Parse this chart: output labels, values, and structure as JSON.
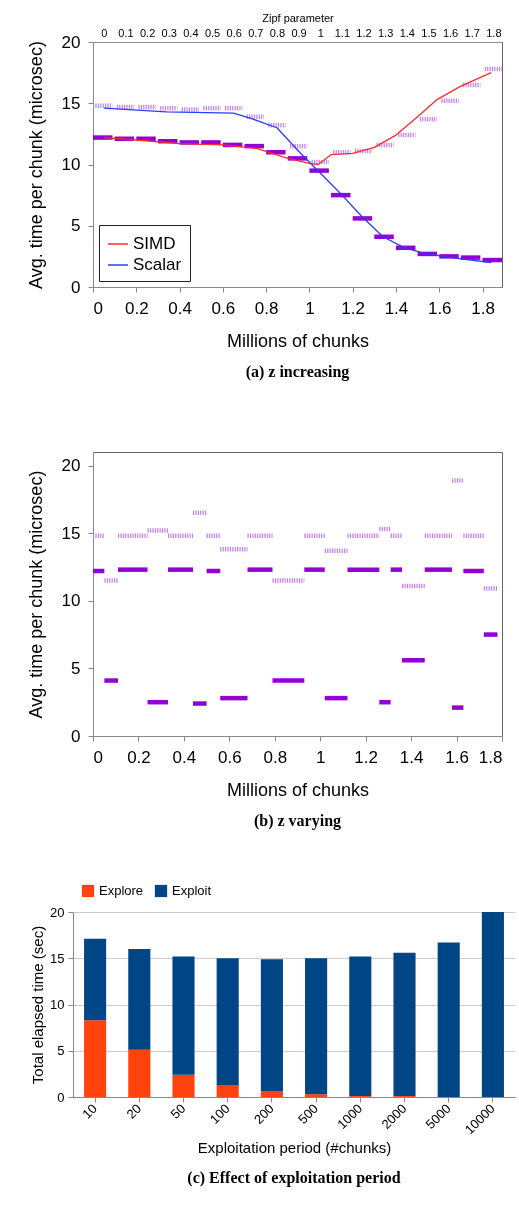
{
  "chart_data": [
    {
      "type": "line",
      "title": "(a) z increasing",
      "xlabel": "Millions of chunks",
      "ylabel": "Avg. time per chunk (microsec)",
      "x2label": "Zipf parameter",
      "xlim": [
        0,
        1.89
      ],
      "xticks": [
        0,
        0.2,
        0.4,
        0.6,
        0.8,
        1,
        1.2,
        1.4,
        1.6,
        1.8
      ],
      "x2lim": [
        -0.05,
        1.84
      ],
      "x2ticks": [
        0,
        0.1,
        0.2,
        0.3,
        0.4,
        0.5,
        0.6,
        0.7,
        0.8,
        0.9,
        1,
        1.1,
        1.2,
        1.3,
        1.4,
        1.5,
        1.6,
        1.7,
        1.8
      ],
      "ylim": [
        0,
        20
      ],
      "yticks": [
        0,
        5,
        10,
        15,
        20
      ],
      "grid": false,
      "legend": "bottom left",
      "series": [
        {
          "name": "SIMD",
          "color": "#ff2a2a",
          "x": [
            0.05,
            0.2,
            0.4,
            0.6,
            0.76,
            0.9,
            1,
            1.04,
            1.1,
            1.2,
            1.3,
            1.4,
            1.5,
            1.59,
            1.7,
            1.84
          ],
          "values": [
            12.2,
            12.0,
            11.7,
            11.6,
            11.3,
            10.5,
            10.1,
            10.0,
            10.8,
            10.9,
            11.4,
            12.4,
            13.9,
            15.3,
            16.4,
            17.5
          ]
        },
        {
          "name": "Scalar",
          "color": "#2a3cff",
          "x": [
            0.05,
            0.34,
            0.65,
            0.74,
            0.85,
            0.96,
            1.05,
            1.14,
            1.24,
            1.34,
            1.44,
            1.54,
            1.7,
            1.84
          ],
          "values": [
            14.6,
            14.3,
            14.2,
            13.7,
            13.0,
            10.9,
            9.3,
            7.7,
            5.8,
            4.1,
            3.2,
            2.7,
            2.3,
            2.0
          ]
        },
        {
          "color": "#c27ff0",
          "line_style": "dotted",
          "x": [
            0,
            0.09
          ],
          "values": [
            14.8,
            14.8
          ]
        },
        {
          "color": "#c27ff0",
          "line_style": "dotted",
          "x": [
            0.11,
            0.19
          ],
          "values": [
            14.7,
            14.7
          ]
        },
        {
          "color": "#c27ff0",
          "line_style": "dotted",
          "x": [
            0.21,
            0.29
          ],
          "values": [
            14.7,
            14.7
          ]
        },
        {
          "color": "#c27ff0",
          "line_style": "dotted",
          "x": [
            0.31,
            0.39
          ],
          "values": [
            14.6,
            14.6
          ]
        },
        {
          "color": "#c27ff0",
          "line_style": "dotted",
          "x": [
            0.41,
            0.49
          ],
          "values": [
            14.5,
            14.5
          ]
        },
        {
          "color": "#c27ff0",
          "line_style": "dotted",
          "x": [
            0.51,
            0.59
          ],
          "values": [
            14.6,
            14.6
          ]
        },
        {
          "color": "#c27ff0",
          "line_style": "dotted",
          "x": [
            0.61,
            0.69
          ],
          "values": [
            14.6,
            14.6
          ]
        },
        {
          "color": "#c27ff0",
          "line_style": "dotted",
          "x": [
            0.71,
            0.79
          ],
          "values": [
            13.9,
            13.9
          ]
        },
        {
          "color": "#c27ff0",
          "line_style": "dotted",
          "x": [
            0.81,
            0.89
          ],
          "values": [
            13.2,
            13.2
          ]
        },
        {
          "color": "#c27ff0",
          "line_style": "dotted",
          "x": [
            0.91,
            0.99
          ],
          "values": [
            11.5,
            11.5
          ]
        },
        {
          "color": "#c27ff0",
          "line_style": "dotted",
          "x": [
            1.01,
            1.09
          ],
          "values": [
            10.2,
            10.2
          ]
        },
        {
          "color": "#c27ff0",
          "line_style": "dotted",
          "x": [
            1.11,
            1.19
          ],
          "values": [
            11.0,
            11.0
          ]
        },
        {
          "color": "#c27ff0",
          "line_style": "dotted",
          "x": [
            1.21,
            1.29
          ],
          "values": [
            11.1,
            11.1
          ]
        },
        {
          "color": "#c27ff0",
          "line_style": "dotted",
          "x": [
            1.31,
            1.39
          ],
          "values": [
            11.6,
            11.6
          ]
        },
        {
          "color": "#c27ff0",
          "line_style": "dotted",
          "x": [
            1.41,
            1.49
          ],
          "values": [
            12.4,
            12.4
          ]
        },
        {
          "color": "#c27ff0",
          "line_style": "dotted",
          "x": [
            1.51,
            1.59
          ],
          "values": [
            13.7,
            13.7
          ]
        },
        {
          "color": "#c27ff0",
          "line_style": "dotted",
          "x": [
            1.61,
            1.69
          ],
          "values": [
            15.2,
            15.2
          ]
        },
        {
          "color": "#c27ff0",
          "line_style": "dotted",
          "x": [
            1.71,
            1.79
          ],
          "values": [
            16.5,
            16.5
          ]
        },
        {
          "color": "#c27ff0",
          "line_style": "dotted",
          "x": [
            1.81,
            1.89
          ],
          "values": [
            17.8,
            17.8
          ]
        },
        {
          "color": "#9400d3",
          "x": [
            0,
            0.09
          ],
          "values": [
            12.2,
            12.2
          ]
        },
        {
          "color": "#9400d3",
          "x": [
            0.1,
            0.19
          ],
          "values": [
            12.1,
            12.1
          ]
        },
        {
          "color": "#9400d3",
          "x": [
            0.2,
            0.29
          ],
          "values": [
            12.1,
            12.1
          ]
        },
        {
          "color": "#9400d3",
          "x": [
            0.3,
            0.39
          ],
          "values": [
            11.9,
            11.9
          ]
        },
        {
          "color": "#9400d3",
          "x": [
            0.4,
            0.49
          ],
          "values": [
            11.8,
            11.8
          ]
        },
        {
          "color": "#9400d3",
          "x": [
            0.5,
            0.59
          ],
          "values": [
            11.8,
            11.8
          ]
        },
        {
          "color": "#9400d3",
          "x": [
            0.6,
            0.69
          ],
          "values": [
            11.6,
            11.6
          ]
        },
        {
          "color": "#9400d3",
          "x": [
            0.7,
            0.79
          ],
          "values": [
            11.5,
            11.5
          ]
        },
        {
          "color": "#9400d3",
          "x": [
            0.8,
            0.89
          ],
          "values": [
            11.0,
            11.0
          ]
        },
        {
          "color": "#9400d3",
          "x": [
            0.9,
            0.99
          ],
          "values": [
            10.5,
            10.5
          ]
        },
        {
          "color": "#9400d3",
          "x": [
            1,
            1.09
          ],
          "values": [
            9.5,
            9.5
          ]
        },
        {
          "color": "#9400d3",
          "x": [
            1.1,
            1.19
          ],
          "values": [
            7.5,
            7.5
          ]
        },
        {
          "color": "#9400d3",
          "x": [
            1.2,
            1.29
          ],
          "values": [
            5.6,
            5.6
          ]
        },
        {
          "color": "#9400d3",
          "x": [
            1.3,
            1.39
          ],
          "values": [
            4.1,
            4.1
          ]
        },
        {
          "color": "#9400d3",
          "x": [
            1.4,
            1.49
          ],
          "values": [
            3.2,
            3.2
          ]
        },
        {
          "color": "#9400d3",
          "x": [
            1.5,
            1.59
          ],
          "values": [
            2.7,
            2.7
          ]
        },
        {
          "color": "#9400d3",
          "x": [
            1.6,
            1.69
          ],
          "values": [
            2.5,
            2.5
          ]
        },
        {
          "color": "#9400d3",
          "x": [
            1.7,
            1.79
          ],
          "values": [
            2.4,
            2.4
          ]
        },
        {
          "color": "#9400d3",
          "x": [
            1.8,
            1.89
          ],
          "values": [
            2.2,
            2.2
          ]
        }
      ]
    },
    {
      "type": "line",
      "title": "(b) z varying",
      "xlabel": "Millions of chunks",
      "ylabel": "Avg. time per chunk (microsec)",
      "xlim": [
        0,
        1.8
      ],
      "xticks": [
        0,
        0.2,
        0.4,
        0.6,
        0.8,
        1,
        1.2,
        1.4,
        1.6,
        1.8
      ],
      "ylim": [
        0,
        21
      ],
      "yticks": [
        0,
        5,
        10,
        15,
        20
      ],
      "grid": false,
      "series": [
        {
          "color": "#c27ff0",
          "line_style": "dotted",
          "x": [
            0,
            0.05
          ],
          "values": [
            14.8,
            14.8
          ]
        },
        {
          "color": "#c27ff0",
          "line_style": "dotted",
          "x": [
            0.05,
            0.11
          ],
          "values": [
            11.5,
            11.5
          ]
        },
        {
          "color": "#c27ff0",
          "line_style": "dotted",
          "x": [
            0.11,
            0.24
          ],
          "values": [
            14.8,
            14.8
          ]
        },
        {
          "color": "#c27ff0",
          "line_style": "dotted",
          "x": [
            0.24,
            0.33
          ],
          "values": [
            15.2,
            15.2
          ]
        },
        {
          "color": "#c27ff0",
          "line_style": "dotted",
          "x": [
            0.33,
            0.44
          ],
          "values": [
            14.8,
            14.8
          ]
        },
        {
          "color": "#c27ff0",
          "line_style": "dotted",
          "x": [
            0.44,
            0.5
          ],
          "values": [
            16.5,
            16.5
          ]
        },
        {
          "color": "#c27ff0",
          "line_style": "dotted",
          "x": [
            0.5,
            0.56
          ],
          "values": [
            14.8,
            14.8
          ]
        },
        {
          "color": "#c27ff0",
          "line_style": "dotted",
          "x": [
            0.56,
            0.68
          ],
          "values": [
            13.8,
            13.8
          ]
        },
        {
          "color": "#c27ff0",
          "line_style": "dotted",
          "x": [
            0.68,
            0.79
          ],
          "values": [
            14.8,
            14.8
          ]
        },
        {
          "color": "#c27ff0",
          "line_style": "dotted",
          "x": [
            0.79,
            0.93
          ],
          "values": [
            11.5,
            11.5
          ]
        },
        {
          "color": "#c27ff0",
          "line_style": "dotted",
          "x": [
            0.93,
            1.02
          ],
          "values": [
            14.8,
            14.8
          ]
        },
        {
          "color": "#c27ff0",
          "line_style": "dotted",
          "x": [
            1.02,
            1.12
          ],
          "values": [
            13.7,
            13.7
          ]
        },
        {
          "color": "#c27ff0",
          "line_style": "dotted",
          "x": [
            1.12,
            1.26
          ],
          "values": [
            14.8,
            14.8
          ]
        },
        {
          "color": "#c27ff0",
          "line_style": "dotted",
          "x": [
            1.26,
            1.31
          ],
          "values": [
            15.3,
            15.3
          ]
        },
        {
          "color": "#c27ff0",
          "line_style": "dotted",
          "x": [
            1.31,
            1.36
          ],
          "values": [
            14.8,
            14.8
          ]
        },
        {
          "color": "#c27ff0",
          "line_style": "dotted",
          "x": [
            1.36,
            1.46
          ],
          "values": [
            11.1,
            11.1
          ]
        },
        {
          "color": "#c27ff0",
          "line_style": "dotted",
          "x": [
            1.46,
            1.58
          ],
          "values": [
            14.8,
            14.8
          ]
        },
        {
          "color": "#c27ff0",
          "line_style": "dotted",
          "x": [
            1.58,
            1.63
          ],
          "values": [
            18.9,
            18.9
          ]
        },
        {
          "color": "#c27ff0",
          "line_style": "dotted",
          "x": [
            1.63,
            1.72
          ],
          "values": [
            14.8,
            14.8
          ]
        },
        {
          "color": "#c27ff0",
          "line_style": "dotted",
          "x": [
            1.72,
            1.78
          ],
          "values": [
            10.9,
            10.9
          ]
        },
        {
          "color": "#9400d3",
          "x": [
            0,
            0.05
          ],
          "values": [
            12.2,
            12.2
          ]
        },
        {
          "color": "#9400d3",
          "x": [
            0.05,
            0.11
          ],
          "values": [
            4.1,
            4.1
          ]
        },
        {
          "color": "#9400d3",
          "x": [
            0.11,
            0.24
          ],
          "values": [
            12.3,
            12.3
          ]
        },
        {
          "color": "#9400d3",
          "x": [
            0.24,
            0.33
          ],
          "values": [
            2.5,
            2.5
          ]
        },
        {
          "color": "#9400d3",
          "x": [
            0.33,
            0.44
          ],
          "values": [
            12.3,
            12.3
          ]
        },
        {
          "color": "#9400d3",
          "x": [
            0.44,
            0.5
          ],
          "values": [
            2.4,
            2.4
          ]
        },
        {
          "color": "#9400d3",
          "x": [
            0.5,
            0.56
          ],
          "values": [
            12.2,
            12.2
          ]
        },
        {
          "color": "#9400d3",
          "x": [
            0.56,
            0.68
          ],
          "values": [
            2.8,
            2.8
          ]
        },
        {
          "color": "#9400d3",
          "x": [
            0.68,
            0.79
          ],
          "values": [
            12.3,
            12.3
          ]
        },
        {
          "color": "#9400d3",
          "x": [
            0.79,
            0.93
          ],
          "values": [
            4.1,
            4.1
          ]
        },
        {
          "color": "#9400d3",
          "x": [
            0.93,
            1.02
          ],
          "values": [
            12.3,
            12.3
          ]
        },
        {
          "color": "#9400d3",
          "x": [
            1.02,
            1.12
          ],
          "values": [
            2.8,
            2.8
          ]
        },
        {
          "color": "#9400d3",
          "x": [
            1.12,
            1.26
          ],
          "values": [
            12.3,
            12.3
          ]
        },
        {
          "color": "#9400d3",
          "x": [
            1.26,
            1.31
          ],
          "values": [
            2.5,
            2.5
          ]
        },
        {
          "color": "#9400d3",
          "x": [
            1.31,
            1.36
          ],
          "values": [
            12.3,
            12.3
          ]
        },
        {
          "color": "#9400d3",
          "x": [
            1.36,
            1.46
          ],
          "values": [
            5.6,
            5.6
          ]
        },
        {
          "color": "#9400d3",
          "x": [
            1.46,
            1.58
          ],
          "values": [
            12.3,
            12.3
          ]
        },
        {
          "color": "#9400d3",
          "x": [
            1.58,
            1.63
          ],
          "values": [
            2.1,
            2.1
          ]
        },
        {
          "color": "#9400d3",
          "x": [
            1.63,
            1.72
          ],
          "values": [
            12.2,
            12.2
          ]
        },
        {
          "color": "#9400d3",
          "x": [
            1.72,
            1.78
          ],
          "values": [
            7.5,
            7.5
          ]
        }
      ]
    },
    {
      "type": "bar",
      "title": "(c) Effect of exploitation period",
      "xlabel": "Exploitation period (#chunks)",
      "ylabel": "Total elapsed time (sec)",
      "categories": [
        "10",
        "20",
        "50",
        "100",
        "200",
        "500",
        "1000",
        "2000",
        "5000",
        "10000"
      ],
      "ylim": [
        0,
        20
      ],
      "yticks": [
        0,
        5,
        10,
        15,
        20
      ],
      "grid": "y",
      "legend": "top",
      "stacked": true,
      "series": [
        {
          "name": "Explore",
          "color": "#ff420e",
          "values": [
            8.3,
            5.1,
            2.4,
            1.3,
            0.6,
            0.3,
            0.1,
            0.1,
            0,
            0
          ]
        },
        {
          "name": "Exploit",
          "color": "#004586",
          "values": [
            8.8,
            10.9,
            12.8,
            13.7,
            14.3,
            14.7,
            15.1,
            15.5,
            16.7,
            20.0
          ]
        }
      ]
    }
  ]
}
